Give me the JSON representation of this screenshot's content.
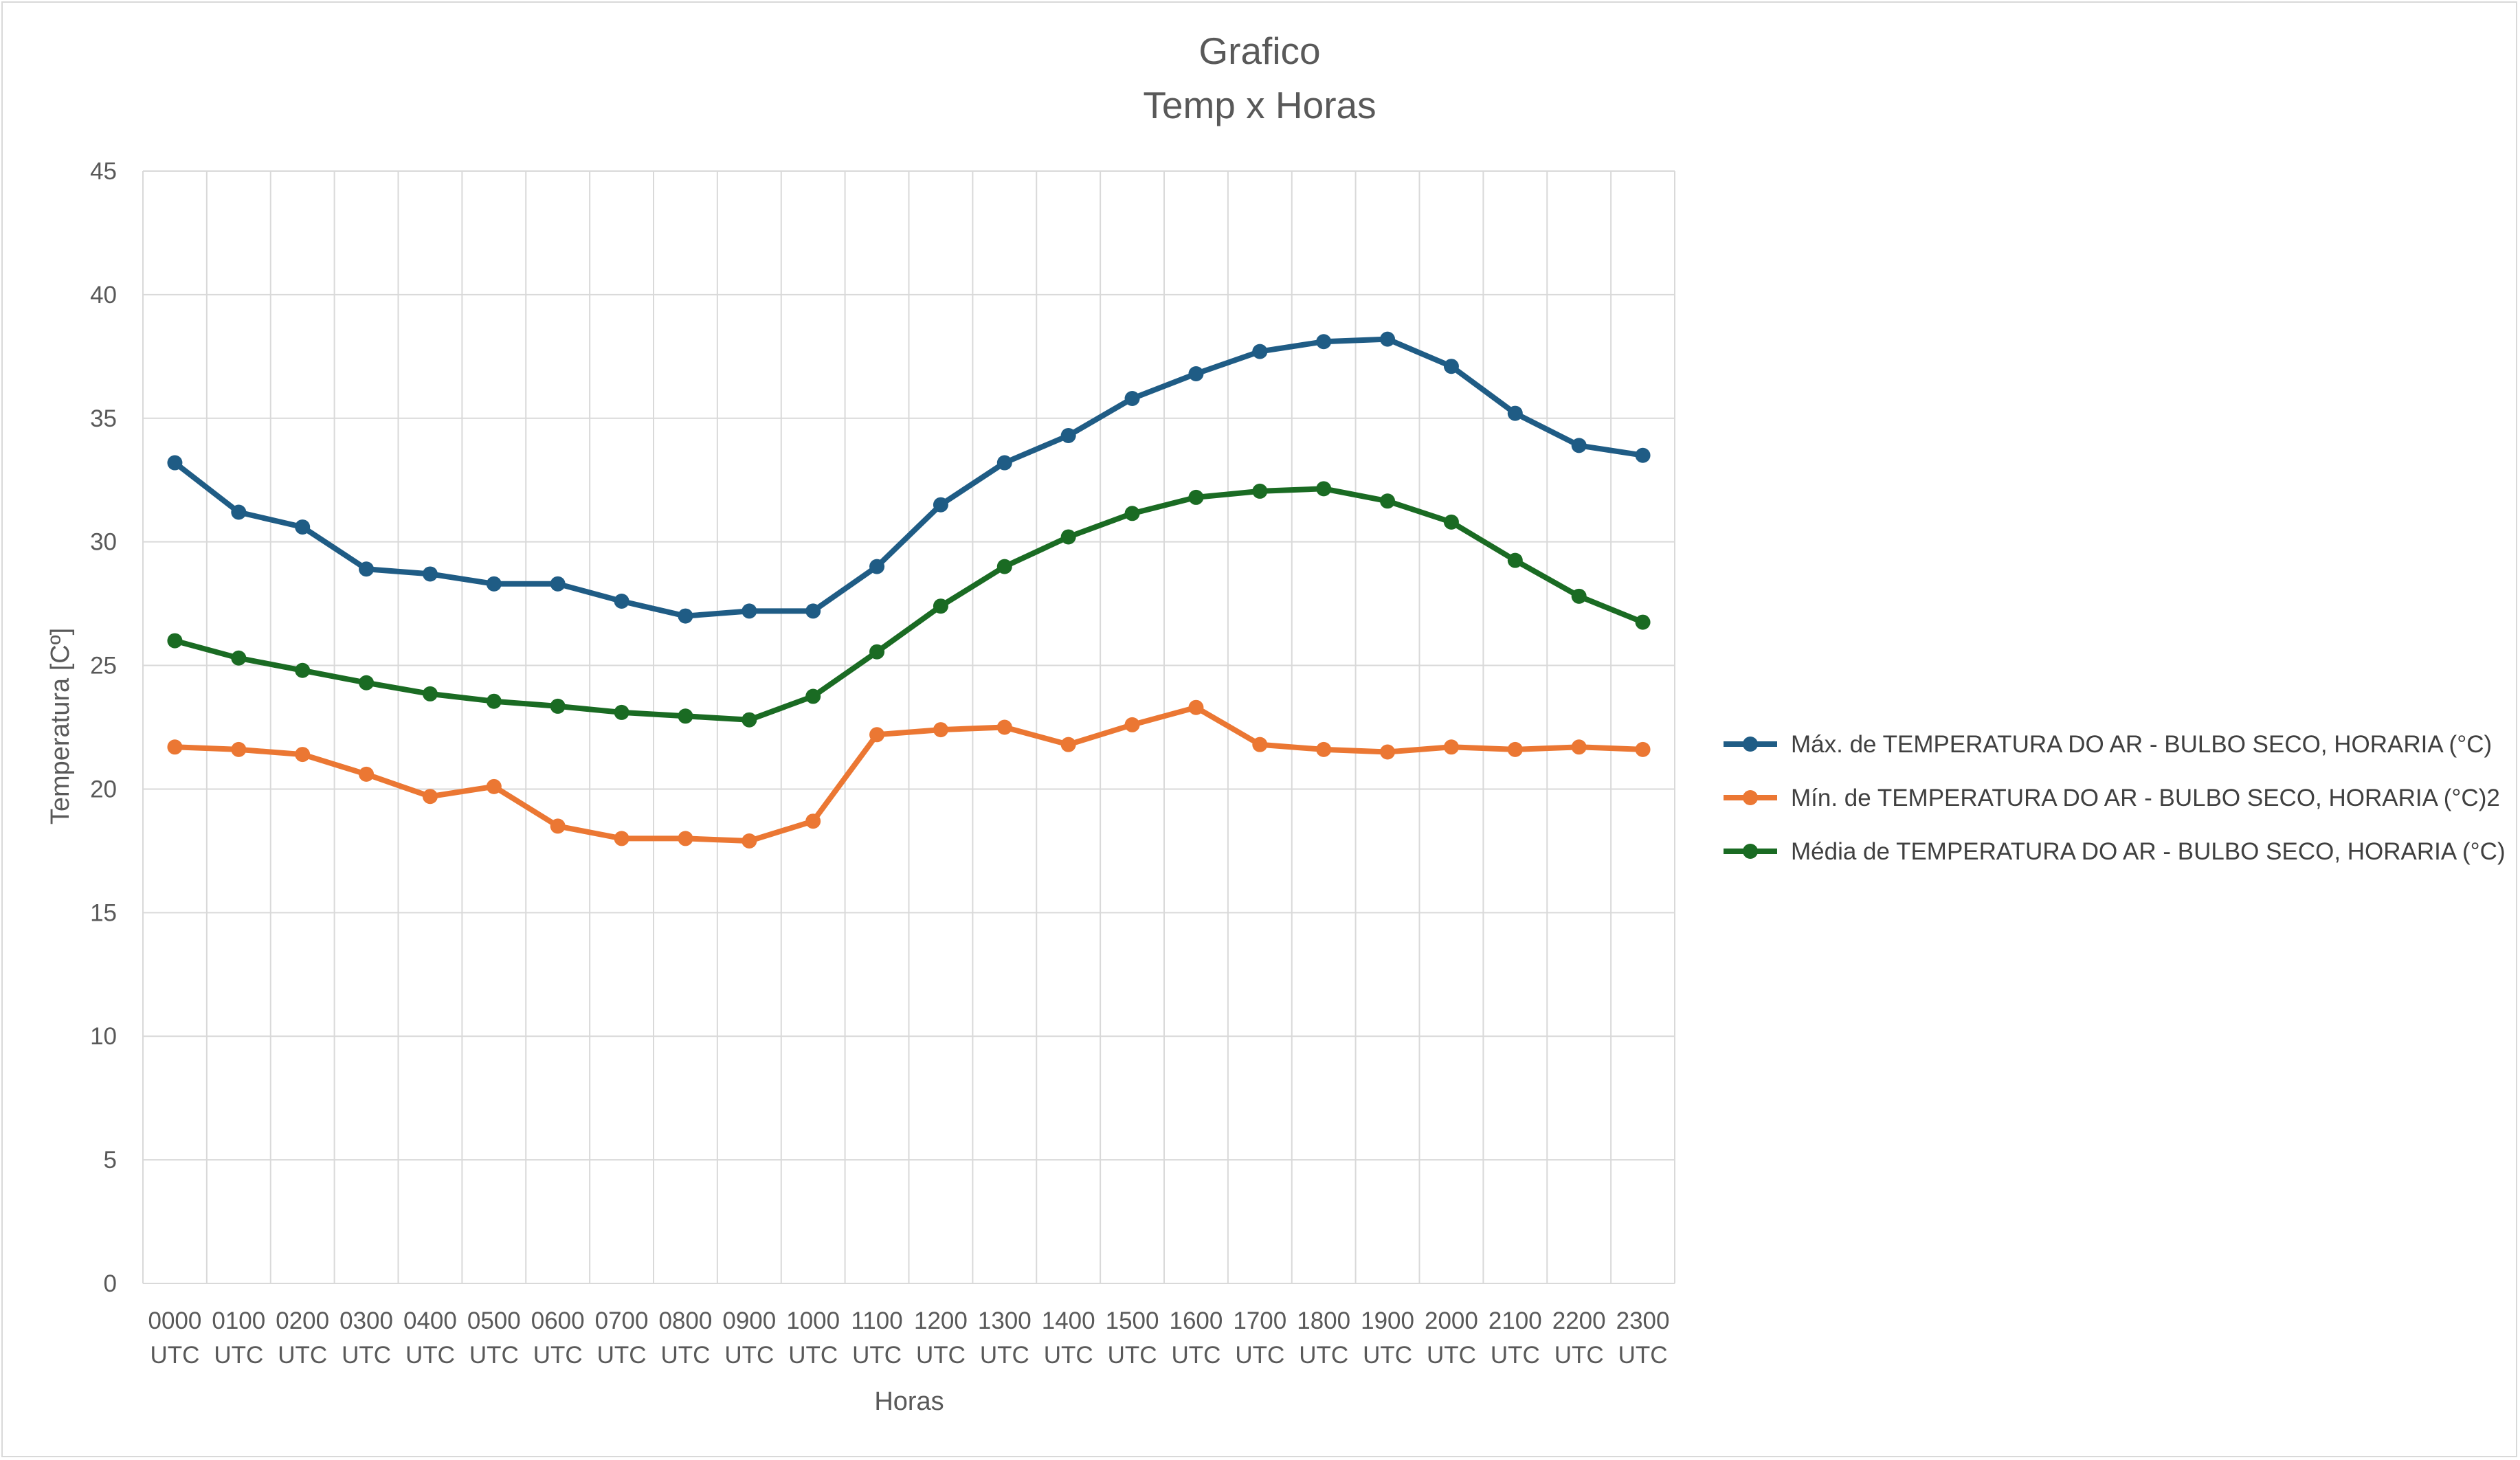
{
  "chart_data": {
    "type": "line",
    "title": "Grafico",
    "subtitle": "Temp x Horas",
    "xlabel": "Horas",
    "ylabel": "Temperatura [Cº]",
    "ylim": [
      0,
      45
    ],
    "yticks": [
      0,
      5,
      10,
      15,
      20,
      25,
      30,
      35,
      40,
      45
    ],
    "grid": true,
    "legend_position": "right",
    "categories": [
      [
        "0000",
        "UTC"
      ],
      [
        "0100",
        "UTC"
      ],
      [
        "0200",
        "UTC"
      ],
      [
        "0300",
        "UTC"
      ],
      [
        "0400",
        "UTC"
      ],
      [
        "0500",
        "UTC"
      ],
      [
        "0600",
        "UTC"
      ],
      [
        "0700",
        "UTC"
      ],
      [
        "0800",
        "UTC"
      ],
      [
        "0900",
        "UTC"
      ],
      [
        "1000",
        "UTC"
      ],
      [
        "1100",
        "UTC"
      ],
      [
        "1200",
        "UTC"
      ],
      [
        "1300",
        "UTC"
      ],
      [
        "1400",
        "UTC"
      ],
      [
        "1500",
        "UTC"
      ],
      [
        "1600",
        "UTC"
      ],
      [
        "1700",
        "UTC"
      ],
      [
        "1800",
        "UTC"
      ],
      [
        "1900",
        "UTC"
      ],
      [
        "2000",
        "UTC"
      ],
      [
        "2100",
        "UTC"
      ],
      [
        "2200",
        "UTC"
      ],
      [
        "2300",
        "UTC"
      ]
    ],
    "series": [
      {
        "name": "Máx. de TEMPERATURA DO AR - BULBO SECO, HORARIA (°C)",
        "color": "#1f5c85",
        "values": [
          33.2,
          31.2,
          30.6,
          28.9,
          28.7,
          28.3,
          28.3,
          27.6,
          27.0,
          27.2,
          27.2,
          29.0,
          31.5,
          33.2,
          34.3,
          35.8,
          36.8,
          37.7,
          38.1,
          38.2,
          37.1,
          35.2,
          33.9,
          33.5
        ]
      },
      {
        "name": "Mín. de TEMPERATURA DO AR - BULBO SECO, HORARIA (°C)2",
        "color": "#eb7733",
        "values": [
          21.7,
          21.6,
          21.4,
          20.6,
          19.7,
          20.1,
          18.5,
          18.0,
          18.0,
          17.9,
          18.7,
          22.2,
          22.4,
          22.5,
          21.8,
          22.6,
          23.3,
          21.8,
          21.6,
          21.5,
          21.7,
          21.6,
          21.7,
          21.6
        ]
      },
      {
        "name": "Média de TEMPERATURA DO AR - BULBO SECO, HORARIA (°C)",
        "color": "#1a6b23",
        "values": [
          26.0,
          25.3,
          24.8,
          24.3,
          23.85,
          23.55,
          23.35,
          23.1,
          22.95,
          22.8,
          23.75,
          25.55,
          27.4,
          29.0,
          30.2,
          31.15,
          31.8,
          32.05,
          32.15,
          31.65,
          30.8,
          29.25,
          27.8,
          26.75
        ]
      }
    ]
  }
}
